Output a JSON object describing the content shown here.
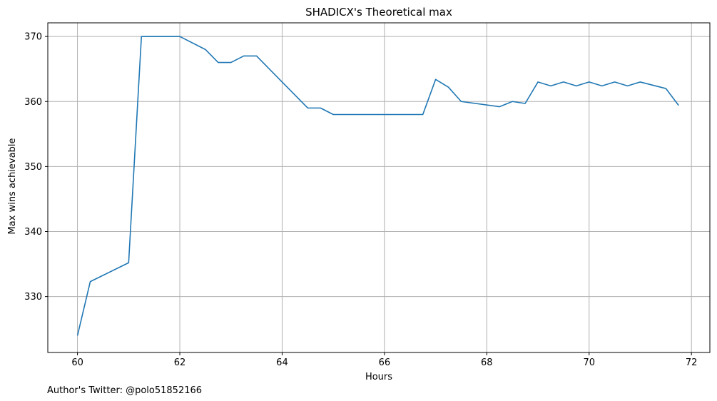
{
  "chart_data": {
    "type": "line",
    "title": "SHADICX's Theoretical max",
    "xlabel": "Hours",
    "ylabel": "Max wins achievable",
    "xlim": [
      59.42,
      72.36
    ],
    "ylim": [
      321.4,
      372.1
    ],
    "xticks": [
      60,
      62,
      64,
      66,
      68,
      70,
      72
    ],
    "yticks": [
      330,
      340,
      350,
      360,
      370
    ],
    "grid": true,
    "line_color": "#1f77b4",
    "series": [
      {
        "x": [
          60.0,
          60.25,
          61.0,
          61.25,
          62.0,
          62.5,
          62.75,
          63.0,
          63.25,
          63.5,
          64.5,
          64.75,
          65.0,
          66.75,
          67.0,
          67.25,
          67.5,
          68.25,
          68.5,
          68.75,
          69.0,
          69.25,
          69.5,
          69.75,
          70.0,
          70.25,
          70.5,
          70.75,
          71.0,
          71.5,
          71.75
        ],
        "y": [
          324,
          332.3,
          335.2,
          370,
          370,
          368,
          366,
          366,
          367,
          367,
          359,
          359,
          358,
          358,
          363.4,
          362.2,
          360,
          359.2,
          360,
          359.7,
          363,
          362.4,
          363,
          362.4,
          363,
          362.4,
          363,
          362.4,
          363,
          362,
          359.4
        ]
      }
    ]
  },
  "footer": "Author's Twitter: @polo51852166"
}
